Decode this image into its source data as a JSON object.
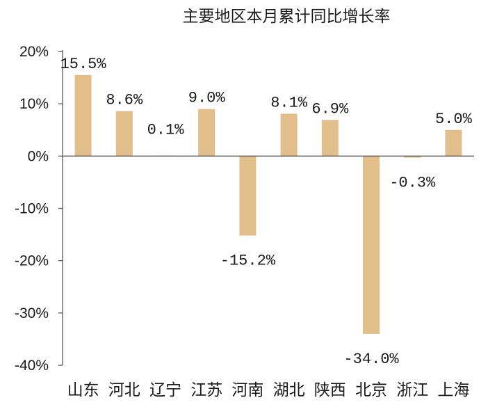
{
  "chart_data": {
    "type": "bar",
    "title": "主要地区本月累计同比增长率",
    "categories": [
      "山东",
      "河北",
      "辽宁",
      "江苏",
      "河南",
      "湖北",
      "陕西",
      "北京",
      "浙江",
      "上海"
    ],
    "values": [
      15.5,
      8.6,
      0.1,
      9.0,
      -15.2,
      8.1,
      6.9,
      -34.0,
      -0.3,
      5.0
    ],
    "data_labels": [
      "15.5%",
      "8.6%",
      "0.1%",
      "9.0%",
      "-15.2%",
      "8.1%",
      "6.9%",
      "-34.0%",
      "-0.3%",
      "5.0%"
    ],
    "y_ticks": [
      20,
      10,
      0,
      -10,
      -20,
      -30,
      -40
    ],
    "y_tick_labels": [
      "20%",
      "10%",
      "0%",
      "-10%",
      "-20%",
      "-30%",
      "-40%"
    ],
    "ylim": [
      -40,
      20
    ],
    "xlabel": "",
    "ylabel": "",
    "grid": false,
    "legend": "none",
    "bar_color": "#e2bf8a"
  }
}
